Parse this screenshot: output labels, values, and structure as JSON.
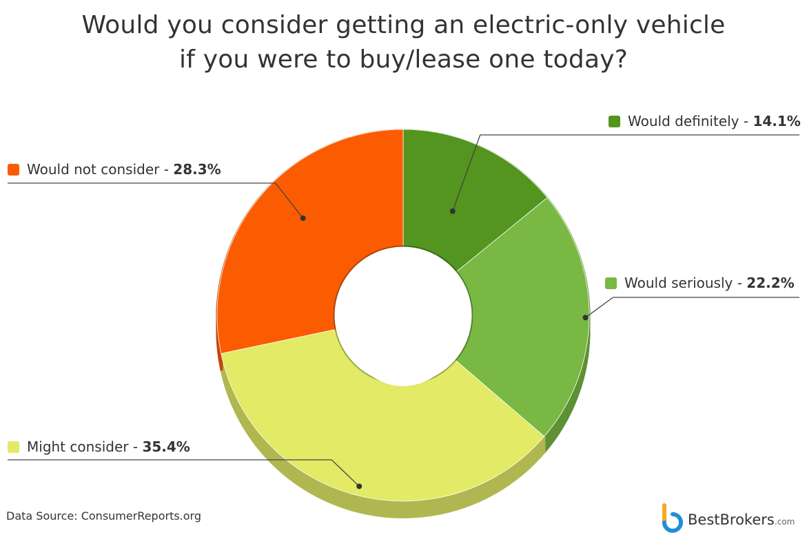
{
  "title_lines": [
    "Would you consider getting an electric-only vehicle",
    "if you were to buy/lease one today?"
  ],
  "chart_data": {
    "type": "pie",
    "variant": "donut",
    "categories": [
      "Would definitely",
      "Would seriously",
      "Might consider",
      "Would not consider"
    ],
    "values": [
      14.1,
      22.2,
      35.4,
      28.3
    ],
    "unit": "%",
    "colors": [
      "#53951e",
      "#78b843",
      "#e2ea66",
      "#fb5c02"
    ],
    "legend": [
      {
        "name": "Would definitely",
        "sep": " - ",
        "value": "14.1%"
      },
      {
        "name": "Would seriously",
        "sep": " - ",
        "value": "22.2%"
      },
      {
        "name": "Might consider",
        "sep": " - ",
        "value": "35.4%"
      },
      {
        "name": "Would not consider",
        "sep": " - ",
        "value": "28.3%"
      }
    ]
  },
  "source": "Data Source: ConsumerReports.org",
  "logo": {
    "name": "BestBrokers",
    "suffix": ".com",
    "colors": [
      "#f7a823",
      "#1f8fd8"
    ]
  }
}
